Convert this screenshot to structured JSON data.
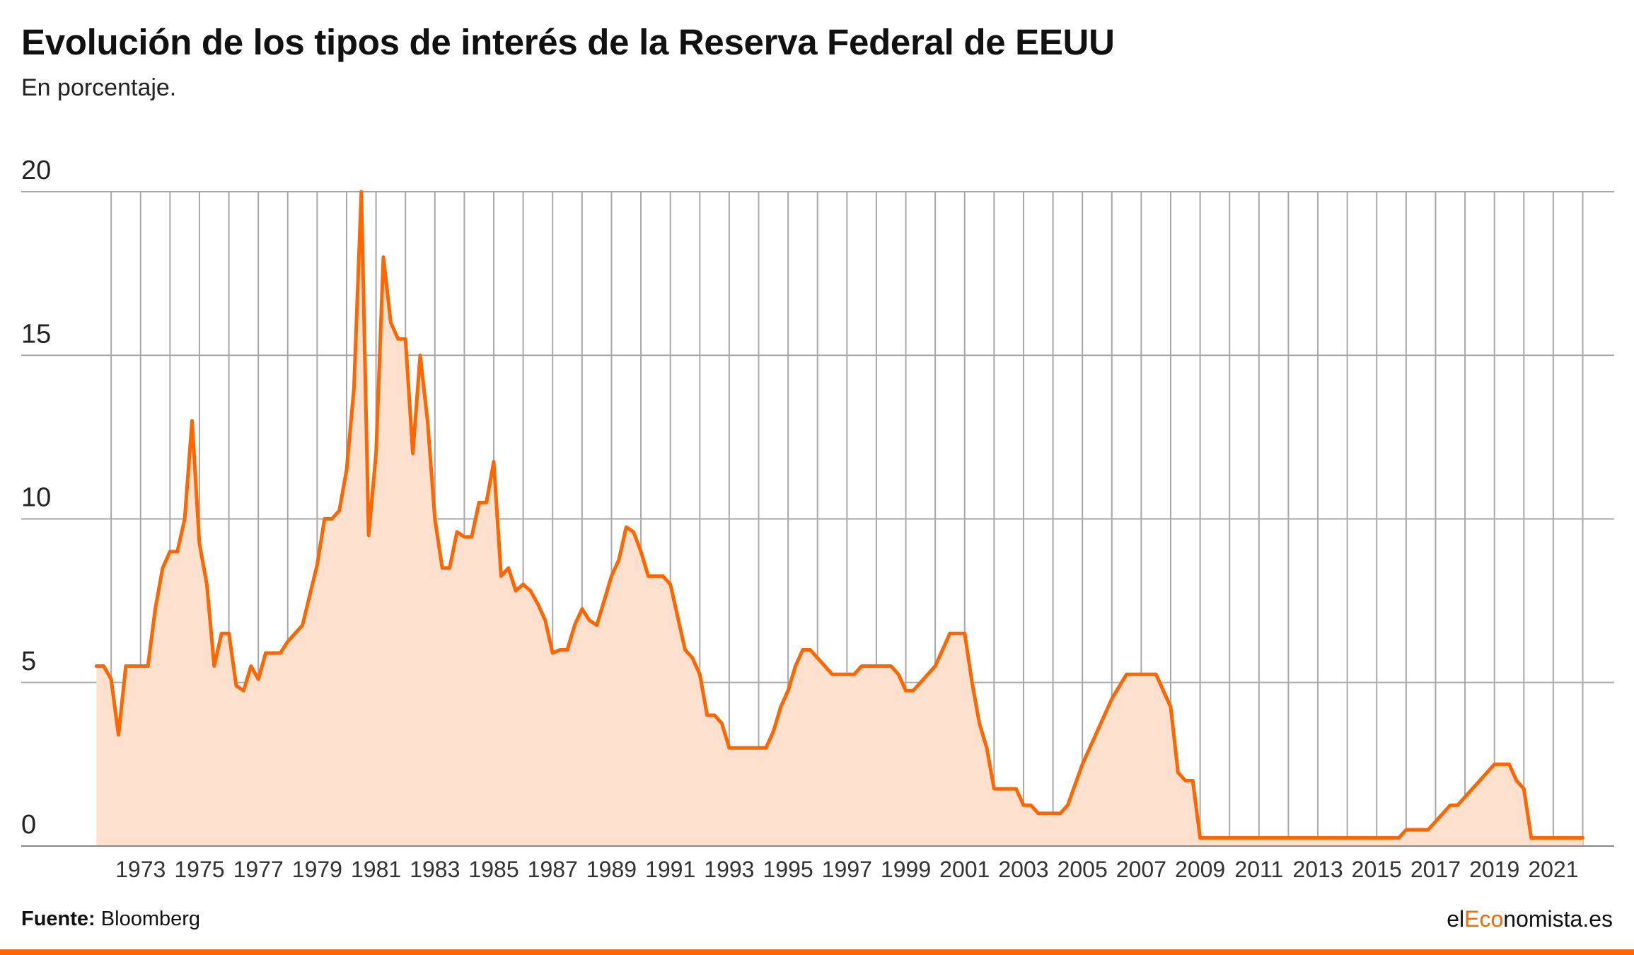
{
  "header": {
    "title": "Evolución de los tipos de interés de la Reserva Federal de EEUU",
    "subtitle": "En porcentaje."
  },
  "footer": {
    "source_label": "Fuente:",
    "source_value": "Bloomberg",
    "brand_prefix": "el",
    "brand_accent": "Eco",
    "brand_suffix": "nomista.es"
  },
  "colors": {
    "line": "#ff6600",
    "area": "#fde0cd",
    "grid": "#a8a8a8",
    "accent_bar": "#ff6600"
  },
  "chart_data": {
    "type": "area",
    "title": "Evolución de los tipos de interés de la Reserva Federal de EEUU",
    "subtitle": "En porcentaje.",
    "xlabel": "",
    "ylabel": "",
    "ylim": [
      0,
      20
    ],
    "xlim": [
      1971.3,
      2022.3
    ],
    "y_ticks": [
      0,
      5,
      10,
      15,
      20
    ],
    "x_ticks": [
      1973,
      1975,
      1977,
      1979,
      1981,
      1983,
      1985,
      1987,
      1989,
      1991,
      1993,
      1995,
      1997,
      1999,
      2001,
      2003,
      2005,
      2007,
      2009,
      2011,
      2013,
      2015,
      2017,
      2019,
      2021
    ],
    "grid": true,
    "series": [
      {
        "points": [
          [
            1971.5,
            5.5
          ],
          [
            1971.75,
            5.5
          ],
          [
            1972.0,
            5.1
          ],
          [
            1972.25,
            3.4
          ],
          [
            1972.5,
            5.5
          ],
          [
            1972.75,
            5.5
          ],
          [
            1973.0,
            5.5
          ],
          [
            1973.25,
            5.5
          ],
          [
            1973.5,
            7.25
          ],
          [
            1973.75,
            8.5
          ],
          [
            1974.0,
            9.0
          ],
          [
            1974.25,
            9.0
          ],
          [
            1974.5,
            10.0
          ],
          [
            1974.75,
            13.0
          ],
          [
            1975.0,
            9.25
          ],
          [
            1975.25,
            8.0
          ],
          [
            1975.5,
            5.5
          ],
          [
            1975.75,
            6.5
          ],
          [
            1976.0,
            6.5
          ],
          [
            1976.25,
            4.9
          ],
          [
            1976.5,
            4.75
          ],
          [
            1976.75,
            5.5
          ],
          [
            1977.0,
            5.1
          ],
          [
            1977.25,
            5.9
          ],
          [
            1977.5,
            5.9
          ],
          [
            1977.75,
            5.9
          ],
          [
            1978.0,
            6.25
          ],
          [
            1978.5,
            6.75
          ],
          [
            1979.0,
            8.6
          ],
          [
            1979.25,
            10.0
          ],
          [
            1979.5,
            10.0
          ],
          [
            1979.75,
            10.25
          ],
          [
            1980.0,
            11.5
          ],
          [
            1980.25,
            14.0
          ],
          [
            1980.5,
            20.0
          ],
          [
            1980.75,
            9.5
          ],
          [
            1981.0,
            12.0
          ],
          [
            1981.25,
            18.0
          ],
          [
            1981.5,
            16.0
          ],
          [
            1981.75,
            15.5
          ],
          [
            1982.0,
            15.5
          ],
          [
            1982.25,
            12.0
          ],
          [
            1982.5,
            15.0
          ],
          [
            1982.75,
            13.0
          ],
          [
            1983.0,
            10.0
          ],
          [
            1983.25,
            8.5
          ],
          [
            1983.5,
            8.5
          ],
          [
            1983.75,
            9.6
          ],
          [
            1984.0,
            9.45
          ],
          [
            1984.25,
            9.45
          ],
          [
            1984.5,
            10.5
          ],
          [
            1984.75,
            10.5
          ],
          [
            1985.0,
            11.75
          ],
          [
            1985.25,
            8.25
          ],
          [
            1985.5,
            8.5
          ],
          [
            1985.75,
            7.8
          ],
          [
            1986.0,
            8.0
          ],
          [
            1986.25,
            7.8
          ],
          [
            1986.5,
            7.4
          ],
          [
            1986.75,
            6.9
          ],
          [
            1987.0,
            5.9
          ],
          [
            1987.25,
            6.0
          ],
          [
            1987.5,
            6.0
          ],
          [
            1987.75,
            6.75
          ],
          [
            1988.0,
            7.25
          ],
          [
            1988.25,
            6.9
          ],
          [
            1988.5,
            6.75
          ],
          [
            1988.75,
            7.5
          ],
          [
            1989.0,
            8.25
          ],
          [
            1989.25,
            8.75
          ],
          [
            1989.5,
            9.75
          ],
          [
            1989.75,
            9.6
          ],
          [
            1990.0,
            9.0
          ],
          [
            1990.25,
            8.25
          ],
          [
            1990.5,
            8.25
          ],
          [
            1990.75,
            8.25
          ],
          [
            1991.0,
            8.0
          ],
          [
            1991.25,
            7.0
          ],
          [
            1991.5,
            6.0
          ],
          [
            1991.75,
            5.75
          ],
          [
            1992.0,
            5.25
          ],
          [
            1992.25,
            4.0
          ],
          [
            1992.5,
            4.0
          ],
          [
            1992.75,
            3.75
          ],
          [
            1993.0,
            3.0
          ],
          [
            1993.5,
            3.0
          ],
          [
            1994.0,
            3.0
          ],
          [
            1994.25,
            3.0
          ],
          [
            1994.5,
            3.5
          ],
          [
            1994.75,
            4.25
          ],
          [
            1995.0,
            4.75
          ],
          [
            1995.25,
            5.5
          ],
          [
            1995.5,
            6.0
          ],
          [
            1995.75,
            6.0
          ],
          [
            1996.0,
            5.75
          ],
          [
            1996.25,
            5.5
          ],
          [
            1996.5,
            5.25
          ],
          [
            1996.75,
            5.25
          ],
          [
            1997.0,
            5.25
          ],
          [
            1997.25,
            5.25
          ],
          [
            1997.5,
            5.5
          ],
          [
            1998.0,
            5.5
          ],
          [
            1998.5,
            5.5
          ],
          [
            1998.75,
            5.25
          ],
          [
            1999.0,
            4.75
          ],
          [
            1999.25,
            4.75
          ],
          [
            1999.5,
            5.0
          ],
          [
            1999.75,
            5.25
          ],
          [
            2000.0,
            5.5
          ],
          [
            2000.25,
            6.0
          ],
          [
            2000.5,
            6.5
          ],
          [
            2000.75,
            6.5
          ],
          [
            2001.0,
            6.5
          ],
          [
            2001.25,
            5.0
          ],
          [
            2001.5,
            3.75
          ],
          [
            2001.75,
            3.0
          ],
          [
            2002.0,
            1.75
          ],
          [
            2002.5,
            1.75
          ],
          [
            2002.75,
            1.75
          ],
          [
            2003.0,
            1.25
          ],
          [
            2003.25,
            1.25
          ],
          [
            2003.5,
            1.0
          ],
          [
            2004.0,
            1.0
          ],
          [
            2004.25,
            1.0
          ],
          [
            2004.5,
            1.25
          ],
          [
            2005.0,
            2.5
          ],
          [
            2005.5,
            3.5
          ],
          [
            2006.0,
            4.5
          ],
          [
            2006.5,
            5.25
          ],
          [
            2007.0,
            5.25
          ],
          [
            2007.5,
            5.25
          ],
          [
            2007.75,
            4.75
          ],
          [
            2008.0,
            4.25
          ],
          [
            2008.25,
            2.25
          ],
          [
            2008.5,
            2.0
          ],
          [
            2008.75,
            2.0
          ],
          [
            2009.0,
            0.25
          ],
          [
            2010.0,
            0.25
          ],
          [
            2012.0,
            0.25
          ],
          [
            2014.0,
            0.25
          ],
          [
            2015.75,
            0.25
          ],
          [
            2016.0,
            0.5
          ],
          [
            2016.5,
            0.5
          ],
          [
            2016.75,
            0.5
          ],
          [
            2017.0,
            0.75
          ],
          [
            2017.25,
            1.0
          ],
          [
            2017.5,
            1.25
          ],
          [
            2017.75,
            1.25
          ],
          [
            2018.0,
            1.5
          ],
          [
            2018.25,
            1.75
          ],
          [
            2018.5,
            2.0
          ],
          [
            2018.75,
            2.25
          ],
          [
            2019.0,
            2.5
          ],
          [
            2019.25,
            2.5
          ],
          [
            2019.5,
            2.5
          ],
          [
            2019.75,
            2.0
          ],
          [
            2020.0,
            1.75
          ],
          [
            2020.25,
            0.25
          ],
          [
            2021.0,
            0.25
          ],
          [
            2021.5,
            0.25
          ],
          [
            2022.0,
            0.25
          ]
        ]
      }
    ]
  }
}
